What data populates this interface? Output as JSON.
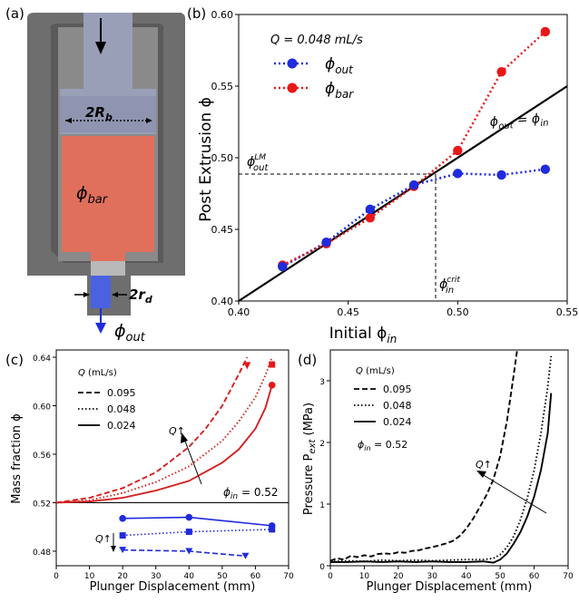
{
  "figure": {
    "panel_a": {
      "label": "(a)",
      "label_Rb": "2R",
      "label_Rb_sub": "b",
      "label_rd": "2r",
      "label_rd_sub": "d",
      "phi_bar_main": "ϕ",
      "phi_bar_sub": "bar",
      "phi_out_main": "ϕ",
      "phi_out_sub": "out"
    },
    "panel_b": {
      "label": "(b)",
      "legend_q": "Q =  0.048 mL/s",
      "legend_out_main": "ϕ",
      "legend_out_sub": "out",
      "legend_bar_main": "ϕ",
      "legend_bar_sub": "bar",
      "line_label": "ϕ",
      "line_label_a_sub": "out",
      "line_label_mid": " = ϕ",
      "line_label_b_sub": "in",
      "lm_main": "ϕ",
      "lm_sub": "out",
      "lm_sup": "LM",
      "crit_main": "ϕ",
      "crit_sub": "in",
      "crit_sup": "crit",
      "xlabel_main": "Initial ϕ",
      "xlabel_sub": "in",
      "ylabel": "Post Extrusion ϕ"
    },
    "panel_c": {
      "label": "(c)",
      "legend_title": "Q",
      "legend_title_unit": " (mL/s)",
      "legend_entries": [
        "0.095",
        "0.048",
        "0.024"
      ],
      "q_arrow_main": "Q",
      "q_arrow_sym": "↑",
      "q_arrow2_main": "Q",
      "q_arrow2_sym": "↑",
      "phi_in_label": "ϕ",
      "phi_in_sub": "in",
      "phi_in_value": " = 0.52",
      "xlabel": "Plunger Displacement (mm)",
      "ylabel": "Mass fraction ϕ"
    },
    "panel_d": {
      "label": "(d)",
      "legend_title": "Q",
      "legend_title_unit": " (mL/s)",
      "legend_entries": [
        "0.095",
        "0.048",
        "0.024"
      ],
      "q_arrow_main": "Q",
      "q_arrow_sym": "↑",
      "phi_in_label": "ϕ",
      "phi_in_sub": "in",
      "phi_in_value": " = 0.52",
      "xlabel": "Plunger Displacement (mm)",
      "ylabel_main": "Pressure P",
      "ylabel_sub": "ext",
      "ylabel_unit": " (MPa)"
    }
  },
  "colors": {
    "blue": "#1f2bdc",
    "red": "#e81818",
    "panel_red": "#e0705c",
    "gray": "#6e6e6e",
    "steel": "#9a9fb8"
  },
  "chart_data": [
    {
      "type": "scatter",
      "panel": "b",
      "xlim": [
        0.4,
        0.55
      ],
      "ylim": [
        0.4,
        0.6
      ],
      "xticks": [
        "0.40",
        "0.45",
        "0.50",
        "0.55"
      ],
      "yticks": [
        "0.40",
        "0.45",
        "0.50",
        "0.55",
        "0.60"
      ],
      "series": [
        {
          "name": "ϕout",
          "x": [
            0.42,
            0.44,
            0.46,
            0.48,
            0.5,
            0.52,
            0.54
          ],
          "y": [
            0.424,
            0.441,
            0.464,
            0.481,
            0.489,
            0.488,
            0.492
          ]
        },
        {
          "name": "ϕbar",
          "x": [
            0.42,
            0.44,
            0.46,
            0.48,
            0.5,
            0.52,
            0.54
          ],
          "y": [
            0.425,
            0.44,
            0.458,
            0.48,
            0.505,
            0.56,
            0.588
          ]
        }
      ],
      "reference_line": {
        "x": [
          0.4,
          0.55
        ],
        "y": [
          0.4,
          0.55
        ]
      },
      "phi_out_LM": 0.49,
      "phi_in_crit": 0.49
    },
    {
      "type": "line",
      "panel": "c",
      "xlim": [
        0,
        70
      ],
      "ylim": [
        0.468,
        0.646
      ],
      "xticks": [
        "0",
        "10",
        "20",
        "30",
        "40",
        "50",
        "60",
        "70"
      ],
      "yticks": [
        "0.48",
        "0.52",
        "0.56",
        "0.60",
        "0.64"
      ],
      "baseline": 0.52,
      "curves": [
        {
          "name": "0.095",
          "x": [
            0,
            10,
            20,
            30,
            40,
            45,
            50,
            55,
            57.5
          ],
          "y": [
            0.52,
            0.524,
            0.532,
            0.545,
            0.566,
            0.581,
            0.6,
            0.626,
            0.64
          ]
        },
        {
          "name": "0.048",
          "x": [
            0,
            10,
            20,
            30,
            40,
            50,
            55,
            60,
            63,
            65
          ],
          "y": [
            0.52,
            0.522,
            0.528,
            0.537,
            0.55,
            0.571,
            0.587,
            0.607,
            0.625,
            0.64
          ]
        },
        {
          "name": "0.024",
          "x": [
            0,
            10,
            20,
            30,
            40,
            50,
            55,
            60,
            63,
            65
          ],
          "y": [
            0.52,
            0.521,
            0.524,
            0.53,
            0.538,
            0.553,
            0.564,
            0.581,
            0.598,
            0.617
          ]
        }
      ],
      "series": [
        {
          "name": "0.095",
          "x": [
            20,
            40,
            57
          ],
          "y": [
            0.481,
            0.48,
            0.476
          ]
        },
        {
          "name": "0.048",
          "x": [
            20,
            40,
            65
          ],
          "y": [
            0.493,
            0.496,
            0.498
          ]
        },
        {
          "name": "0.024",
          "x": [
            20,
            40,
            65
          ],
          "y": [
            0.507,
            0.508,
            0.501
          ]
        }
      ],
      "end_points": [
        {
          "name": "0.095",
          "x": 57.5,
          "y": 0.633
        },
        {
          "name": "0.048",
          "x": 65,
          "y": 0.634
        },
        {
          "name": "0.024",
          "x": 65,
          "y": 0.617
        }
      ]
    },
    {
      "type": "line",
      "panel": "d",
      "xlim": [
        0,
        70
      ],
      "ylim": [
        0,
        3.5
      ],
      "xticks": [
        "0",
        "10",
        "20",
        "30",
        "40",
        "50",
        "60",
        "70"
      ],
      "yticks": [
        "0",
        "1",
        "2",
        "3"
      ],
      "series": [
        {
          "name": "0.095",
          "x": [
            0,
            2,
            4,
            6,
            8,
            10,
            12,
            14,
            16,
            18,
            20,
            22,
            24,
            26,
            28,
            30,
            32,
            34,
            36,
            38,
            40,
            42,
            44,
            46,
            48,
            50,
            52,
            54,
            55
          ],
          "y": [
            0.08,
            0.12,
            0.1,
            0.16,
            0.14,
            0.17,
            0.15,
            0.19,
            0.2,
            0.19,
            0.22,
            0.21,
            0.24,
            0.25,
            0.28,
            0.3,
            0.33,
            0.36,
            0.4,
            0.48,
            0.6,
            0.76,
            0.95,
            1.15,
            1.4,
            1.78,
            2.35,
            3.1,
            3.5
          ]
        },
        {
          "name": "0.048",
          "x": [
            0,
            5,
            10,
            15,
            20,
            25,
            30,
            35,
            40,
            45,
            48,
            50,
            52,
            54,
            56,
            58,
            60,
            62,
            64,
            65
          ],
          "y": [
            0.07,
            0.08,
            0.07,
            0.09,
            0.08,
            0.09,
            0.08,
            0.09,
            0.1,
            0.1,
            0.12,
            0.18,
            0.3,
            0.48,
            0.75,
            1.1,
            1.55,
            2.15,
            2.9,
            3.4
          ]
        },
        {
          "name": "0.024",
          "x": [
            0,
            5,
            10,
            15,
            20,
            25,
            30,
            35,
            40,
            45,
            48,
            50,
            52,
            54,
            56,
            58,
            60,
            62,
            64,
            65
          ],
          "y": [
            0.06,
            0.06,
            0.07,
            0.06,
            0.07,
            0.06,
            0.07,
            0.06,
            0.06,
            0.07,
            0.05,
            0.1,
            0.2,
            0.36,
            0.55,
            0.8,
            1.12,
            1.55,
            2.15,
            2.8
          ]
        }
      ]
    }
  ]
}
